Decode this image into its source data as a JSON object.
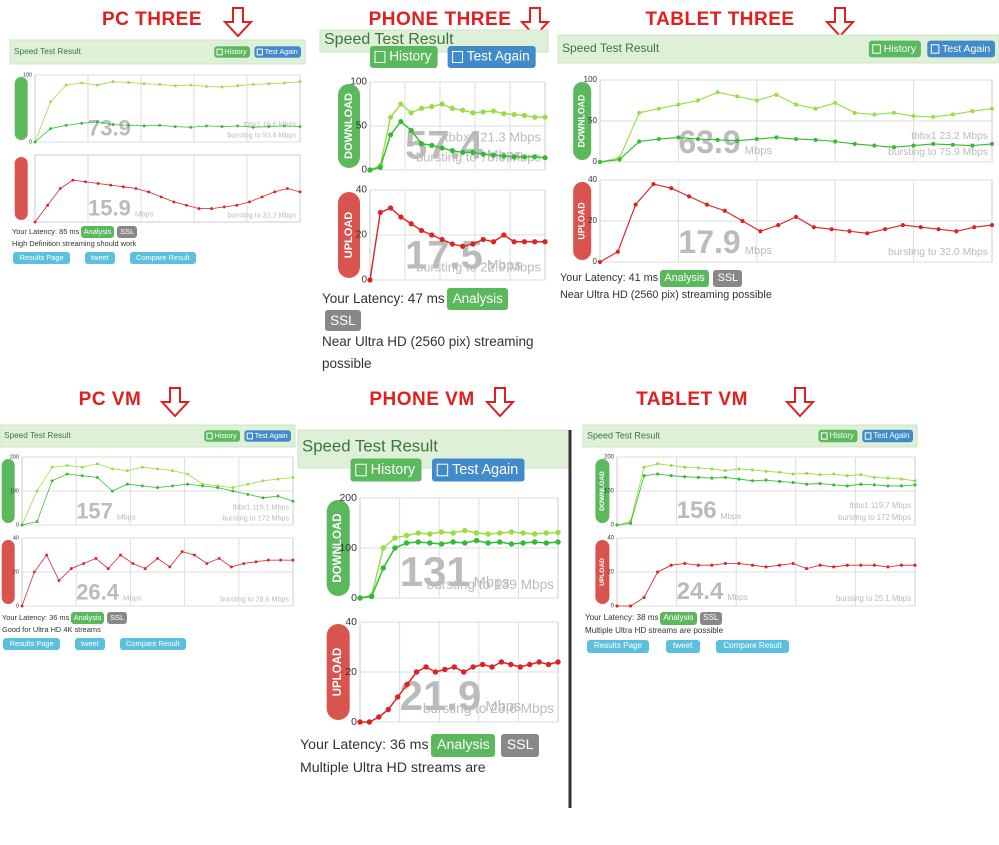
{
  "panels": [
    {
      "label": "PC THREE",
      "header": "Speed Test Result",
      "buttons": [
        "History",
        "Test Again"
      ],
      "download": {
        "ylim": [
          0,
          100
        ],
        "yticks": [
          0,
          100
        ],
        "series": [
          {
            "color": "#99dd44",
            "values": [
              0,
              60,
              85,
              88,
              85,
              90,
              89,
              87,
              86,
              84,
              85,
              83,
              82,
              84,
              86,
              87,
              88,
              90
            ]
          },
          {
            "color": "#33bb33",
            "values": [
              0,
              20,
              25,
              28,
              30,
              26,
              25,
              24,
              25,
              23,
              22,
              24,
              23,
              24,
              22,
              23,
              24,
              23
            ]
          }
        ],
        "speed": "73.9",
        "server": "tbbx1 16.6 Mbps",
        "burst": "bursting to 93.8 Mbps"
      },
      "upload": {
        "ylim": [
          0,
          40
        ],
        "series": [
          {
            "color": "#dd2222",
            "values": [
              0,
              10,
              20,
              25,
              24,
              23,
              22,
              21,
              20,
              18,
              15,
              12,
              10,
              8,
              8,
              9,
              10,
              12,
              15,
              18,
              20,
              18
            ]
          }
        ],
        "speed": "15.9",
        "unit": "Mbps",
        "burst": "bursting to 32.2 Mbps"
      },
      "latency": "Your Latency: 85 ms",
      "badges": [
        "Analysis",
        "SSL"
      ],
      "note": "High Definition streaming should work",
      "links": [
        "Results Page",
        "tweet",
        "Compare Result"
      ]
    },
    {
      "label": "PHONE THREE",
      "header": "Speed Test Result",
      "buttons": [
        "History",
        "Test Again"
      ],
      "download": {
        "axis_label": "DOWNLOAD",
        "ylim": [
          0,
          100
        ],
        "yticks": [
          0,
          50,
          100
        ],
        "series": [
          {
            "color": "#99dd44",
            "values": [
              0,
              5,
              60,
              75,
              65,
              70,
              72,
              75,
              70,
              68,
              65,
              66,
              67,
              64,
              63,
              62,
              60,
              60
            ]
          },
          {
            "color": "#33bb33",
            "values": [
              0,
              3,
              40,
              55,
              45,
              30,
              28,
              25,
              22,
              20,
              20,
              18,
              17,
              16,
              15,
              15,
              15,
              14
            ]
          }
        ],
        "speed": "57.4",
        "unit": "Mbps",
        "server": "tbbx1 21.3 Mbps",
        "burst": "bursting to 75.0 Mbps"
      },
      "upload": {
        "axis_label": "UPLOAD",
        "ylim": [
          0,
          40
        ],
        "yticks": [
          0,
          20,
          40
        ],
        "series": [
          {
            "color": "#dd2222",
            "values": [
              0,
              30,
              32,
              28,
              25,
              22,
              20,
              18,
              16,
              15,
              16,
              18,
              17,
              20,
              17,
              17,
              17,
              17
            ]
          }
        ],
        "speed": "17.5",
        "unit": "Mbps",
        "burst": "bursting to 22.9 Mbps"
      },
      "latency": "Your Latency: 47 ms",
      "badges": [
        "Analysis",
        "SSL"
      ],
      "note": "Near Ultra HD (2560 pix) streaming possible"
    },
    {
      "label": "TABLET THREE",
      "header": "Speed Test Result",
      "buttons": [
        "History",
        "Test Again"
      ],
      "download": {
        "axis_label": "DOWNLOAD",
        "ylim": [
          0,
          100
        ],
        "yticks": [
          0,
          50,
          100
        ],
        "series": [
          {
            "color": "#99dd44",
            "values": [
              0,
              5,
              60,
              65,
              70,
              75,
              85,
              80,
              75,
              82,
              70,
              65,
              72,
              60,
              58,
              60,
              56,
              55,
              58,
              62,
              65
            ]
          },
          {
            "color": "#33bb33",
            "values": [
              0,
              3,
              25,
              28,
              30,
              28,
              27,
              26,
              28,
              30,
              28,
              27,
              25,
              22,
              20,
              18,
              20,
              22,
              21,
              20,
              22
            ]
          }
        ],
        "speed": "63.9",
        "unit": "Mbps",
        "server": "tbbx1 23.2 Mbps",
        "burst": "bursting to 75.9 Mbps"
      },
      "upload": {
        "axis_label": "UPLOAD",
        "ylim": [
          0,
          40
        ],
        "yticks": [
          0,
          20,
          40
        ],
        "series": [
          {
            "color": "#dd2222",
            "values": [
              0,
              5,
              28,
              38,
              36,
              32,
              28,
              25,
              20,
              15,
              18,
              22,
              17,
              16,
              15,
              14,
              16,
              18,
              17,
              16,
              15,
              17,
              18
            ]
          }
        ],
        "speed": "17.9",
        "unit": "Mbps",
        "burst": "bursting to 32.0 Mbps"
      },
      "latency": "Your Latency: 41 ms",
      "badges": [
        "Analysis",
        "SSL"
      ],
      "note": "Near Ultra HD (2560 pix) streaming possible"
    },
    {
      "label": "PC VM",
      "header": "Speed Test Result",
      "buttons": [
        "History",
        "Test Again"
      ],
      "download": {
        "ylim": [
          0,
          200
        ],
        "yticks": [
          0,
          100,
          200
        ],
        "series": [
          {
            "color": "#99dd44",
            "values": [
              0,
              100,
              170,
              175,
              170,
              180,
              165,
              160,
              170,
              165,
              160,
              150,
              120,
              115,
              110,
              120,
              130,
              135,
              140
            ]
          },
          {
            "color": "#33bb33",
            "values": [
              0,
              10,
              130,
              150,
              145,
              140,
              100,
              120,
              115,
              110,
              115,
              120,
              115,
              110,
              100,
              90,
              80,
              85,
              70
            ]
          }
        ],
        "speed": "157",
        "unit": "Mbps",
        "server": "tbbx1 119.1 Mbps",
        "burst": "bursting to 172 Mbps"
      },
      "upload": {
        "ylim": [
          0,
          40
        ],
        "yticks": [
          0,
          20,
          40
        ],
        "series": [
          {
            "color": "#dd2222",
            "values": [
              0,
              20,
              30,
              15,
              22,
              25,
              28,
              22,
              30,
              25,
              22,
              28,
              23,
              32,
              30,
              25,
              28,
              23,
              25,
              26,
              27,
              27,
              27
            ]
          }
        ],
        "speed": "26.4",
        "unit": "Mbps",
        "burst": "bursting to 28.6 Mbps"
      },
      "latency": "Your Latency: 36 ms",
      "badges": [
        "Analysis",
        "SSL"
      ],
      "note": "Good for Ultra HD 4K streams",
      "links": [
        "Results Page",
        "tweet",
        "Compare Result"
      ]
    },
    {
      "label": "PHONE VM",
      "header": "Speed Test Result",
      "buttons": [
        "History",
        "Test Again"
      ],
      "download": {
        "axis_label": "DOWNLOAD",
        "ylim": [
          0,
          200
        ],
        "yticks": [
          0,
          100,
          200
        ],
        "series": [
          {
            "color": "#99dd44",
            "values": [
              0,
              5,
              100,
              120,
              125,
              130,
              128,
              132,
              130,
              135,
              130,
              128,
              130,
              132,
              130,
              128,
              130,
              131
            ]
          },
          {
            "color": "#33bb33",
            "values": [
              0,
              3,
              60,
              100,
              110,
              112,
              110,
              108,
              112,
              110,
              115,
              110,
              112,
              108,
              110,
              112,
              110,
              112
            ]
          }
        ],
        "speed": "131",
        "unit": "Mbps",
        "burst": "bursting to 139 Mbps"
      },
      "upload": {
        "axis_label": "UPLOAD",
        "ylim": [
          0,
          40
        ],
        "yticks": [
          0,
          20,
          40
        ],
        "series": [
          {
            "color": "#dd2222",
            "values": [
              0,
              0,
              2,
              5,
              10,
              15,
              20,
              22,
              20,
              21,
              22,
              20,
              22,
              23,
              22,
              24,
              23,
              22,
              23,
              24,
              23,
              24
            ]
          }
        ],
        "speed": "21.9",
        "unit": "Mbps",
        "burst": "bursting to 23.6 Mbps"
      },
      "latency": "Your Latency: 36 ms",
      "badges": [
        "Analysis",
        "SSL"
      ],
      "note": "Multiple Ultra HD streams are"
    },
    {
      "label": "TABLET VM",
      "header": "Speed Test Result",
      "buttons": [
        "History",
        "Test Again"
      ],
      "download": {
        "axis_label": "DOWNLOAD",
        "ylim": [
          0,
          200
        ],
        "yticks": [
          0,
          100,
          200
        ],
        "series": [
          {
            "color": "#99dd44",
            "values": [
              0,
              10,
              170,
              180,
              175,
              170,
              168,
              165,
              160,
              165,
              162,
              158,
              155,
              150,
              152,
              148,
              150,
              145,
              148,
              140,
              138,
              135,
              130
            ]
          },
          {
            "color": "#33bb33",
            "values": [
              0,
              5,
              145,
              150,
              145,
              142,
              140,
              138,
              140,
              135,
              130,
              132,
              128,
              125,
              120,
              122,
              118,
              115,
              120,
              118,
              115,
              115,
              118
            ]
          }
        ],
        "speed": "156",
        "unit": "Mbps",
        "server": "tbbx1 119.7 Mbps",
        "burst": "bursting to 172 Mbps"
      },
      "upload": {
        "axis_label": "UPLOAD",
        "ylim": [
          0,
          40
        ],
        "yticks": [
          0,
          20,
          40
        ],
        "series": [
          {
            "color": "#dd2222",
            "values": [
              0,
              0,
              5,
              20,
              24,
              25,
              24,
              24,
              25,
              25,
              24,
              23,
              24,
              25,
              22,
              24,
              23,
              24,
              24,
              24,
              23,
              24,
              24
            ]
          }
        ],
        "speed": "24.4",
        "unit": "Mbps",
        "burst": "bursting to 25.1 Mbps"
      },
      "latency": "Your Latency: 38 ms",
      "badges": [
        "Analysis",
        "SSL"
      ],
      "note": "Multiple Ultra HD streams are possible",
      "links": [
        "Results Page",
        "tweet",
        "Compare Result"
      ]
    }
  ]
}
